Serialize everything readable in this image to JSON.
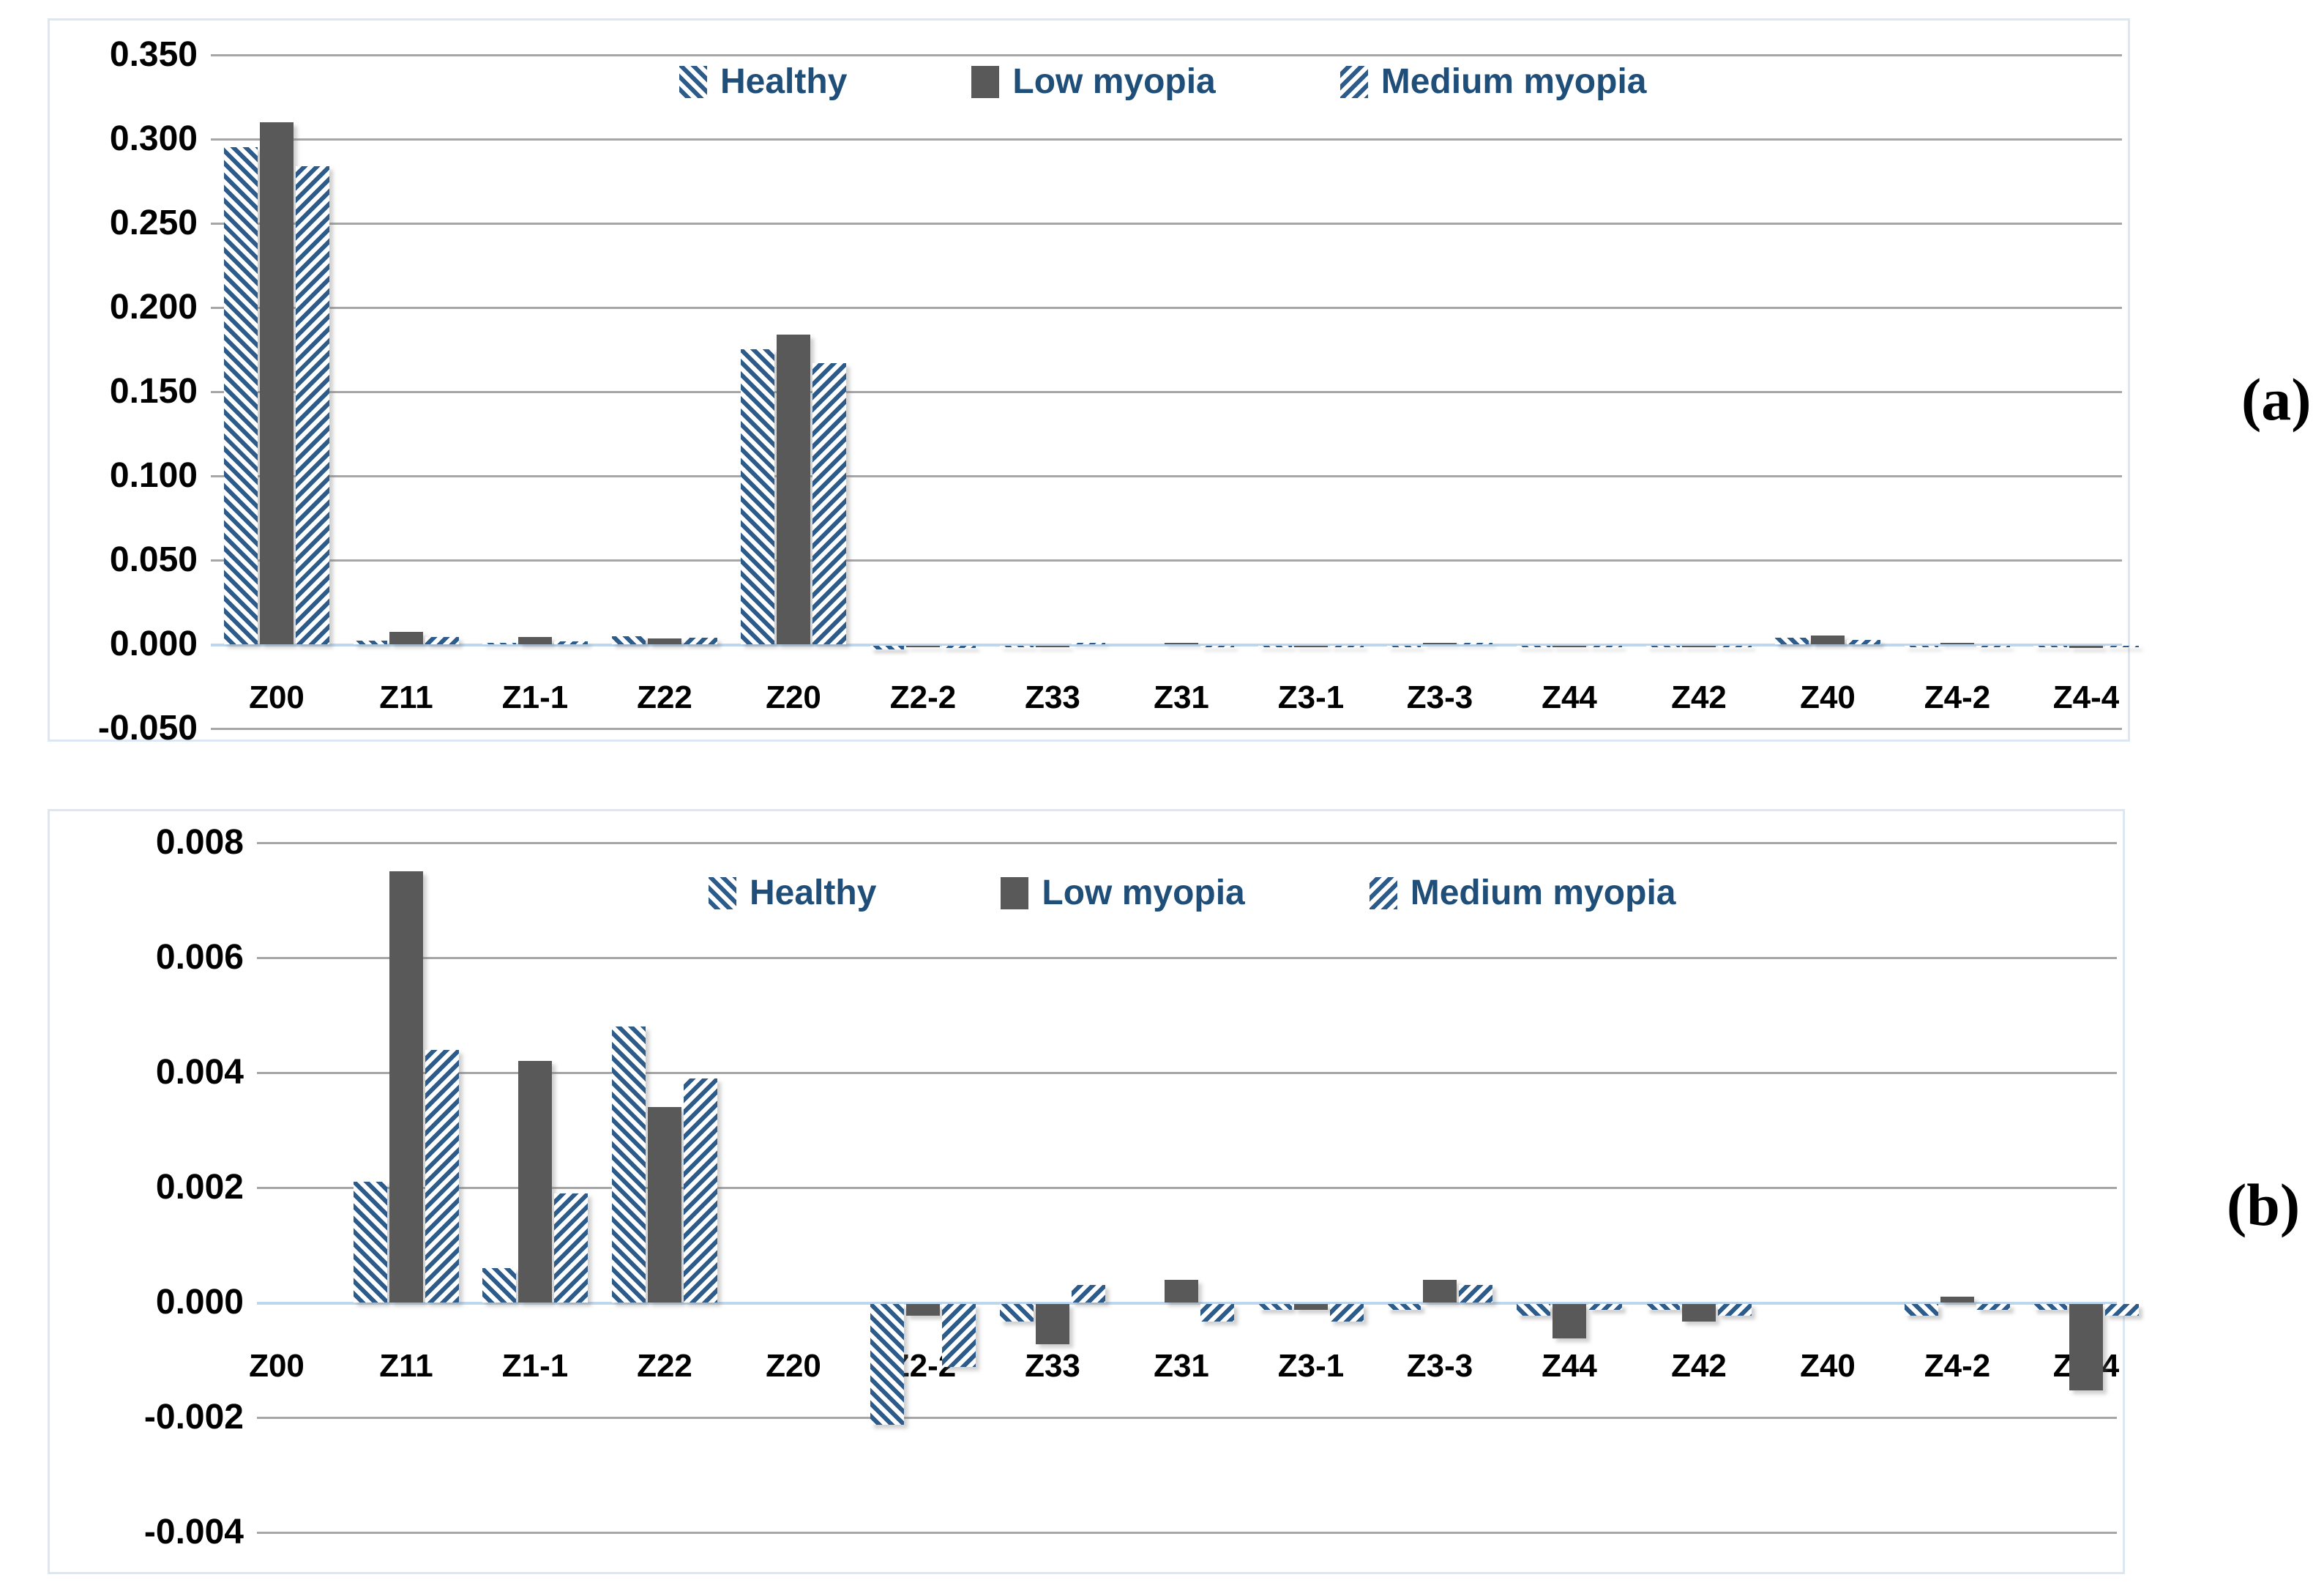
{
  "figure": {
    "panel_a_label": "(a)",
    "panel_b_label": "(b)"
  },
  "colors": {
    "hatch_blue": "#2e5c8a",
    "bar_gray": "#595959",
    "gridline_gray": "#a6a6a6",
    "zero_axis_blue": "#bdd7ee",
    "chart_border_blue": "#dbe7f3",
    "legend_text_blue": "#1f4e79",
    "tick_text": "#000000"
  },
  "legend": {
    "items": [
      {
        "label": "Healthy",
        "pattern": "hatch-forward"
      },
      {
        "label": "Low myopia",
        "pattern": "solid-gray"
      },
      {
        "label": "Medium myopia",
        "pattern": "hatch-backward"
      }
    ],
    "position": "top-center"
  },
  "chart_data": [
    {
      "id": "a",
      "type": "bar",
      "panel_label": "(a)",
      "grid": true,
      "legend_position": "top-center",
      "categories": [
        "Z00",
        "Z11",
        "Z1-1",
        "Z22",
        "Z20",
        "Z2-2",
        "Z33",
        "Z31",
        "Z3-1",
        "Z3-3",
        "Z44",
        "Z42",
        "Z40",
        "Z4-2",
        "Z4-4"
      ],
      "series": [
        {
          "name": "Healthy",
          "pattern": "hatch-forward",
          "values": [
            0.295,
            0.0021,
            0.0006,
            0.0048,
            0.175,
            -0.0021,
            -0.0003,
            0.0,
            -0.0001,
            -0.0001,
            -0.0002,
            -0.0001,
            0.004,
            -0.0002,
            -0.0001
          ]
        },
        {
          "name": "Low myopia",
          "pattern": "solid-gray",
          "values": [
            0.31,
            0.0075,
            0.0042,
            0.0034,
            0.184,
            -0.0002,
            -0.0007,
            0.0004,
            -0.0001,
            0.0004,
            -0.0006,
            -0.0003,
            0.005,
            0.0001,
            -0.0015
          ]
        },
        {
          "name": "Medium myopia",
          "pattern": "hatch-backward",
          "values": [
            0.284,
            0.0044,
            0.0019,
            0.0039,
            0.167,
            -0.0011,
            0.0003,
            -0.0003,
            -0.0003,
            0.0003,
            -0.0001,
            -0.0002,
            0.0025,
            -0.0001,
            -0.0002
          ]
        }
      ],
      "ylim": [
        -0.05,
        0.35
      ],
      "ytick_values": [
        0.35,
        0.3,
        0.25,
        0.2,
        0.15,
        0.1,
        0.05,
        0.0,
        -0.05
      ],
      "ytick_labels": [
        "0.350",
        "0.300",
        "0.250",
        "0.200",
        "0.150",
        "0.100",
        "0.050",
        "0.000",
        "-0.050"
      ],
      "xlabel": "",
      "ylabel": "",
      "title": ""
    },
    {
      "id": "b",
      "type": "bar",
      "panel_label": "(b)",
      "grid": true,
      "legend_position": "top-center",
      "categories": [
        "Z00",
        "Z11",
        "Z1-1",
        "Z22",
        "Z20",
        "Z2-2",
        "Z33",
        "Z31",
        "Z3-1",
        "Z3-3",
        "Z44",
        "Z42",
        "Z40",
        "Z4-2",
        "Z4-4"
      ],
      "series": [
        {
          "name": "Healthy",
          "pattern": "hatch-forward",
          "values": [
            0.0,
            0.0021,
            0.0006,
            0.0048,
            0.0,
            -0.0021,
            -0.0003,
            0.0,
            -0.0001,
            -0.0001,
            -0.0002,
            -0.0001,
            0.0,
            -0.0002,
            -0.0001
          ]
        },
        {
          "name": "Low myopia",
          "pattern": "solid-gray",
          "values": [
            0.0,
            0.0075,
            0.0042,
            0.0034,
            0.0,
            -0.0002,
            -0.0007,
            0.0004,
            -0.0001,
            0.0004,
            -0.0006,
            -0.0003,
            0.0,
            0.0001,
            -0.0015
          ]
        },
        {
          "name": "Medium myopia",
          "pattern": "hatch-backward",
          "values": [
            0.0,
            0.0044,
            0.0019,
            0.0039,
            0.0,
            -0.0011,
            0.0003,
            -0.0003,
            -0.0003,
            0.0003,
            -0.0001,
            -0.0002,
            0.0,
            -0.0001,
            -0.0002
          ]
        }
      ],
      "ylim": [
        -0.004,
        0.008
      ],
      "ytick_values": [
        0.008,
        0.006,
        0.004,
        0.002,
        0.0,
        -0.002,
        -0.004
      ],
      "ytick_labels": [
        "0.008",
        "0.006",
        "0.004",
        "0.002",
        "0.000",
        "-0.002",
        "-0.004"
      ],
      "xlabel": "",
      "ylabel": "",
      "title": ""
    }
  ]
}
